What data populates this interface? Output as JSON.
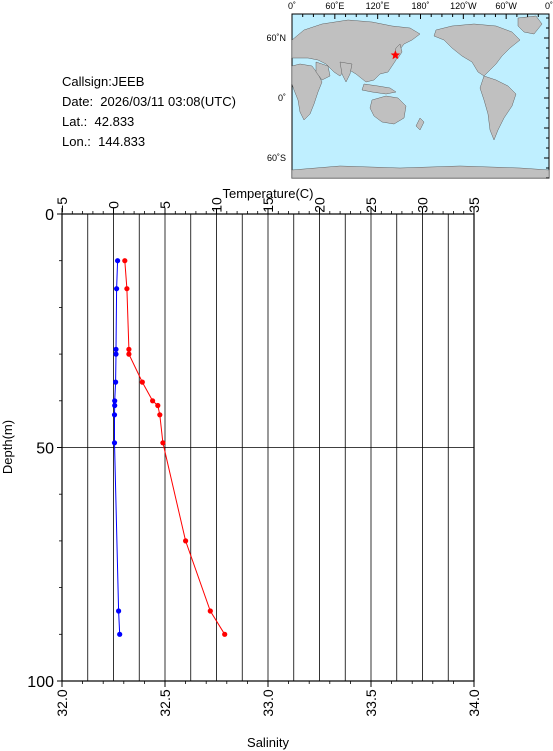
{
  "station": {
    "callsign": "Callsign:JEEB",
    "date": "Date:  2026/03/11 03:08(UTC)",
    "lat": "Lat.:  42.833",
    "lon": "Lon.:  144.833"
  },
  "map": {
    "top_labels": [
      "0˚",
      "60˚E",
      "120˚E",
      "180˚",
      "120˚W",
      "60˚W",
      "0˚"
    ],
    "lat_labels": [
      "60˚N",
      "0˚",
      "60˚S"
    ],
    "colors": {
      "ocean": "#bfefff",
      "land": "#c0c0c0",
      "marker": "#ff0000"
    },
    "marker_lat": 42.833,
    "marker_lon": 144.833
  },
  "chart_data": {
    "type": "line",
    "top_axis_label": "Temperature(C)",
    "bottom_axis_label": "Salinity",
    "y_axis_label": "Depth(m)",
    "temperature_range": [
      -5,
      35
    ],
    "temperature_ticks": [
      "−5",
      "0",
      "5",
      "10",
      "15",
      "20",
      "25",
      "30",
      "35"
    ],
    "salinity_range": [
      32.0,
      34.0
    ],
    "salinity_ticks": [
      "32.0",
      "32.5",
      "33.0",
      "33.5",
      "34.0"
    ],
    "depth_range": [
      0,
      100
    ],
    "depth_ticks": [
      "0",
      "50",
      "100"
    ],
    "y_inverted": true,
    "grid": true,
    "series": [
      {
        "color": "#ff0000",
        "axis": "temperature",
        "depth": [
          10,
          16,
          29,
          30,
          36,
          40,
          41,
          43,
          49,
          70,
          85,
          90
        ],
        "values": [
          1.1,
          1.3,
          1.5,
          1.5,
          2.8,
          3.8,
          4.3,
          4.5,
          4.8,
          7.0,
          9.4,
          10.8
        ]
      },
      {
        "color": "#0000ff",
        "axis": "salinity",
        "depth": [
          10,
          16,
          29,
          30,
          36,
          40,
          41,
          43,
          49,
          85,
          90
        ],
        "values": [
          32.27,
          32.265,
          32.262,
          32.262,
          32.26,
          32.256,
          32.256,
          32.255,
          32.255,
          32.275,
          32.28
        ]
      }
    ]
  }
}
